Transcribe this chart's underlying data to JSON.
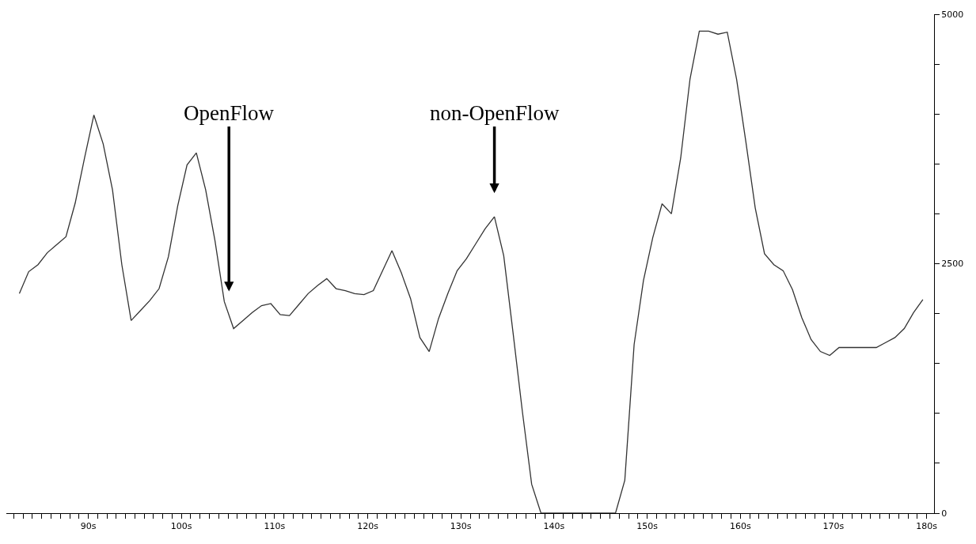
{
  "chart_data": {
    "type": "line",
    "x": [
      82.6,
      83.6,
      84.6,
      85.6,
      86.6,
      87.6,
      88.6,
      89.6,
      90.6,
      91.6,
      92.6,
      93.6,
      94.6,
      95.6,
      96.6,
      97.6,
      98.6,
      99.6,
      100.6,
      101.6,
      102.6,
      103.6,
      104.6,
      105.6,
      106.6,
      107.6,
      108.6,
      109.6,
      110.6,
      111.6,
      112.6,
      113.6,
      114.6,
      115.6,
      116.6,
      117.6,
      118.6,
      119.6,
      120.6,
      121.6,
      122.6,
      123.6,
      124.6,
      125.6,
      126.6,
      127.6,
      128.6,
      129.6,
      130.6,
      131.6,
      132.6,
      133.6,
      134.6,
      135.6,
      136.6,
      137.6,
      138.6,
      139.6,
      140.6,
      141.6,
      142.6,
      143.6,
      144.6,
      145.6,
      146.6,
      147.6,
      148.6,
      149.6,
      150.6,
      151.6,
      152.6,
      153.6,
      154.6,
      155.6,
      156.6,
      157.6,
      158.6,
      159.6,
      160.6,
      161.6,
      162.6,
      163.6,
      164.6,
      165.6,
      166.6,
      167.6,
      168.6,
      169.6,
      170.6,
      171.6,
      172.6,
      173.6,
      174.6,
      175.6,
      176.6,
      177.6,
      178.6,
      179.6
    ],
    "series": [
      {
        "color": "#333333",
        "values": [
          2200,
          2420,
          2490,
          2610,
          2690,
          2770,
          3110,
          3560,
          3990,
          3700,
          3240,
          2490,
          1930,
          2030,
          2130,
          2250,
          2570,
          3080,
          3490,
          3610,
          3240,
          2730,
          2120,
          1850,
          1930,
          2010,
          2080,
          2100,
          1990,
          1980,
          2090,
          2200,
          2280,
          2350,
          2250,
          2230,
          2200,
          2190,
          2230,
          2430,
          2630,
          2410,
          2150,
          1760,
          1620,
          1950,
          2200,
          2430,
          2550,
          2700,
          2850,
          2970,
          2580,
          1810,
          1020,
          290,
          0,
          0,
          0,
          0,
          0,
          0,
          0,
          0,
          0,
          330,
          1690,
          2330,
          2760,
          3100,
          3000,
          3560,
          4350,
          4830,
          4830,
          4800,
          4820,
          4350,
          3720,
          3060,
          2600,
          2490,
          2430,
          2240,
          1960,
          1740,
          1620,
          1580,
          1660,
          1660,
          1660,
          1660,
          1660,
          1710,
          1760,
          1850,
          2010,
          2140
        ]
      }
    ],
    "xlim": [
      81.2,
      180.8
    ],
    "xticks": [
      {
        "value": 82,
        "label": null
      },
      {
        "value": 83,
        "label": null
      },
      {
        "value": 84,
        "label": null
      },
      {
        "value": 85,
        "label": null
      },
      {
        "value": 86,
        "label": null
      },
      {
        "value": 87,
        "label": null
      },
      {
        "value": 88,
        "label": null
      },
      {
        "value": 89,
        "label": null
      },
      {
        "value": 90,
        "label": "90s"
      },
      {
        "value": 91,
        "label": null
      },
      {
        "value": 92,
        "label": null
      },
      {
        "value": 93,
        "label": null
      },
      {
        "value": 94,
        "label": null
      },
      {
        "value": 95,
        "label": null
      },
      {
        "value": 96,
        "label": null
      },
      {
        "value": 97,
        "label": null
      },
      {
        "value": 98,
        "label": null
      },
      {
        "value": 99,
        "label": null
      },
      {
        "value": 100,
        "label": "100s"
      },
      {
        "value": 101,
        "label": null
      },
      {
        "value": 102,
        "label": null
      },
      {
        "value": 103,
        "label": null
      },
      {
        "value": 104,
        "label": null
      },
      {
        "value": 105,
        "label": null
      },
      {
        "value": 106,
        "label": null
      },
      {
        "value": 107,
        "label": null
      },
      {
        "value": 108,
        "label": null
      },
      {
        "value": 109,
        "label": null
      },
      {
        "value": 110,
        "label": "110s"
      },
      {
        "value": 111,
        "label": null
      },
      {
        "value": 112,
        "label": null
      },
      {
        "value": 113,
        "label": null
      },
      {
        "value": 114,
        "label": null
      },
      {
        "value": 115,
        "label": null
      },
      {
        "value": 116,
        "label": null
      },
      {
        "value": 117,
        "label": null
      },
      {
        "value": 118,
        "label": null
      },
      {
        "value": 119,
        "label": null
      },
      {
        "value": 120,
        "label": "120s"
      },
      {
        "value": 121,
        "label": null
      },
      {
        "value": 122,
        "label": null
      },
      {
        "value": 123,
        "label": null
      },
      {
        "value": 124,
        "label": null
      },
      {
        "value": 125,
        "label": null
      },
      {
        "value": 126,
        "label": null
      },
      {
        "value": 127,
        "label": null
      },
      {
        "value": 128,
        "label": null
      },
      {
        "value": 129,
        "label": null
      },
      {
        "value": 130,
        "label": "130s"
      },
      {
        "value": 131,
        "label": null
      },
      {
        "value": 132,
        "label": null
      },
      {
        "value": 133,
        "label": null
      },
      {
        "value": 134,
        "label": null
      },
      {
        "value": 135,
        "label": null
      },
      {
        "value": 136,
        "label": null
      },
      {
        "value": 137,
        "label": null
      },
      {
        "value": 138,
        "label": null
      },
      {
        "value": 139,
        "label": null
      },
      {
        "value": 140,
        "label": "140s"
      },
      {
        "value": 141,
        "label": null
      },
      {
        "value": 142,
        "label": null
      },
      {
        "value": 143,
        "label": null
      },
      {
        "value": 144,
        "label": null
      },
      {
        "value": 145,
        "label": null
      },
      {
        "value": 146,
        "label": null
      },
      {
        "value": 147,
        "label": null
      },
      {
        "value": 148,
        "label": null
      },
      {
        "value": 149,
        "label": null
      },
      {
        "value": 150,
        "label": "150s"
      },
      {
        "value": 151,
        "label": null
      },
      {
        "value": 152,
        "label": null
      },
      {
        "value": 153,
        "label": null
      },
      {
        "value": 154,
        "label": null
      },
      {
        "value": 155,
        "label": null
      },
      {
        "value": 156,
        "label": null
      },
      {
        "value": 157,
        "label": null
      },
      {
        "value": 158,
        "label": null
      },
      {
        "value": 159,
        "label": null
      },
      {
        "value": 160,
        "label": "160s"
      },
      {
        "value": 161,
        "label": null
      },
      {
        "value": 162,
        "label": null
      },
      {
        "value": 163,
        "label": null
      },
      {
        "value": 164,
        "label": null
      },
      {
        "value": 165,
        "label": null
      },
      {
        "value": 166,
        "label": null
      },
      {
        "value": 167,
        "label": null
      },
      {
        "value": 168,
        "label": null
      },
      {
        "value": 169,
        "label": null
      },
      {
        "value": 170,
        "label": "170s"
      },
      {
        "value": 171,
        "label": null
      },
      {
        "value": 172,
        "label": null
      },
      {
        "value": 173,
        "label": null
      },
      {
        "value": 174,
        "label": null
      },
      {
        "value": 175,
        "label": null
      },
      {
        "value": 176,
        "label": null
      },
      {
        "value": 177,
        "label": null
      },
      {
        "value": 178,
        "label": null
      },
      {
        "value": 179,
        "label": null
      },
      {
        "value": 180,
        "label": "180s"
      }
    ],
    "ylim": [
      0,
      5000
    ],
    "yticks": [
      0,
      {
        "value": 500,
        "label": null
      },
      {
        "value": 1000,
        "label": null
      },
      {
        "value": 1500,
        "label": null
      },
      {
        "value": 2000,
        "label": null
      },
      2500,
      {
        "value": 3000,
        "label": null
      },
      {
        "value": 3500,
        "label": null
      },
      {
        "value": 4000,
        "label": null
      },
      {
        "value": 4500,
        "label": null
      },
      5000
    ],
    "annotations": [
      {
        "text": "OpenFlow",
        "x": 105.1,
        "y": 1985
      },
      {
        "text": "non-OpenFlow",
        "x": 133.6,
        "y": 2970
      }
    ]
  }
}
